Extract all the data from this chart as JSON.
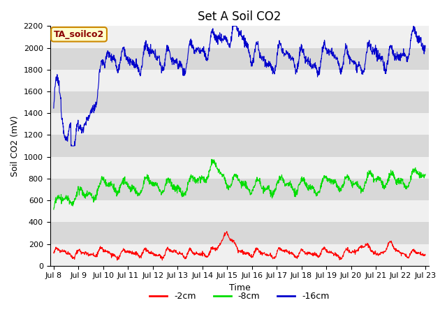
{
  "title": "Set A Soil CO2",
  "xlabel": "Time",
  "ylabel": "Soil CO2 (mV)",
  "ylim": [
    0,
    2200
  ],
  "x_tick_labels": [
    "Jul 8",
    "Jul 9",
    "Jul 10",
    "Jul 11",
    "Jul 12",
    "Jul 13",
    "Jul 14",
    "Jul 15",
    "Jul 16",
    "Jul 17",
    "Jul 18",
    "Jul 19",
    "Jul 20",
    "Jul 21",
    "Jul 22",
    "Jul 23"
  ],
  "annotation_text": "TA_soilco2",
  "annotation_box_facecolor": "#ffffcc",
  "annotation_text_color": "#8b0000",
  "annotation_edge_color": "#cc8800",
  "bg_color": "#d8d8d8",
  "stripe_color": "#f0f0f0",
  "line_red": "#ff0000",
  "line_green": "#00dd00",
  "line_blue": "#0000cc",
  "legend_labels": [
    "-2cm",
    "-8cm",
    "-16cm"
  ],
  "title_fontsize": 12,
  "axis_label_fontsize": 9,
  "tick_fontsize": 8
}
